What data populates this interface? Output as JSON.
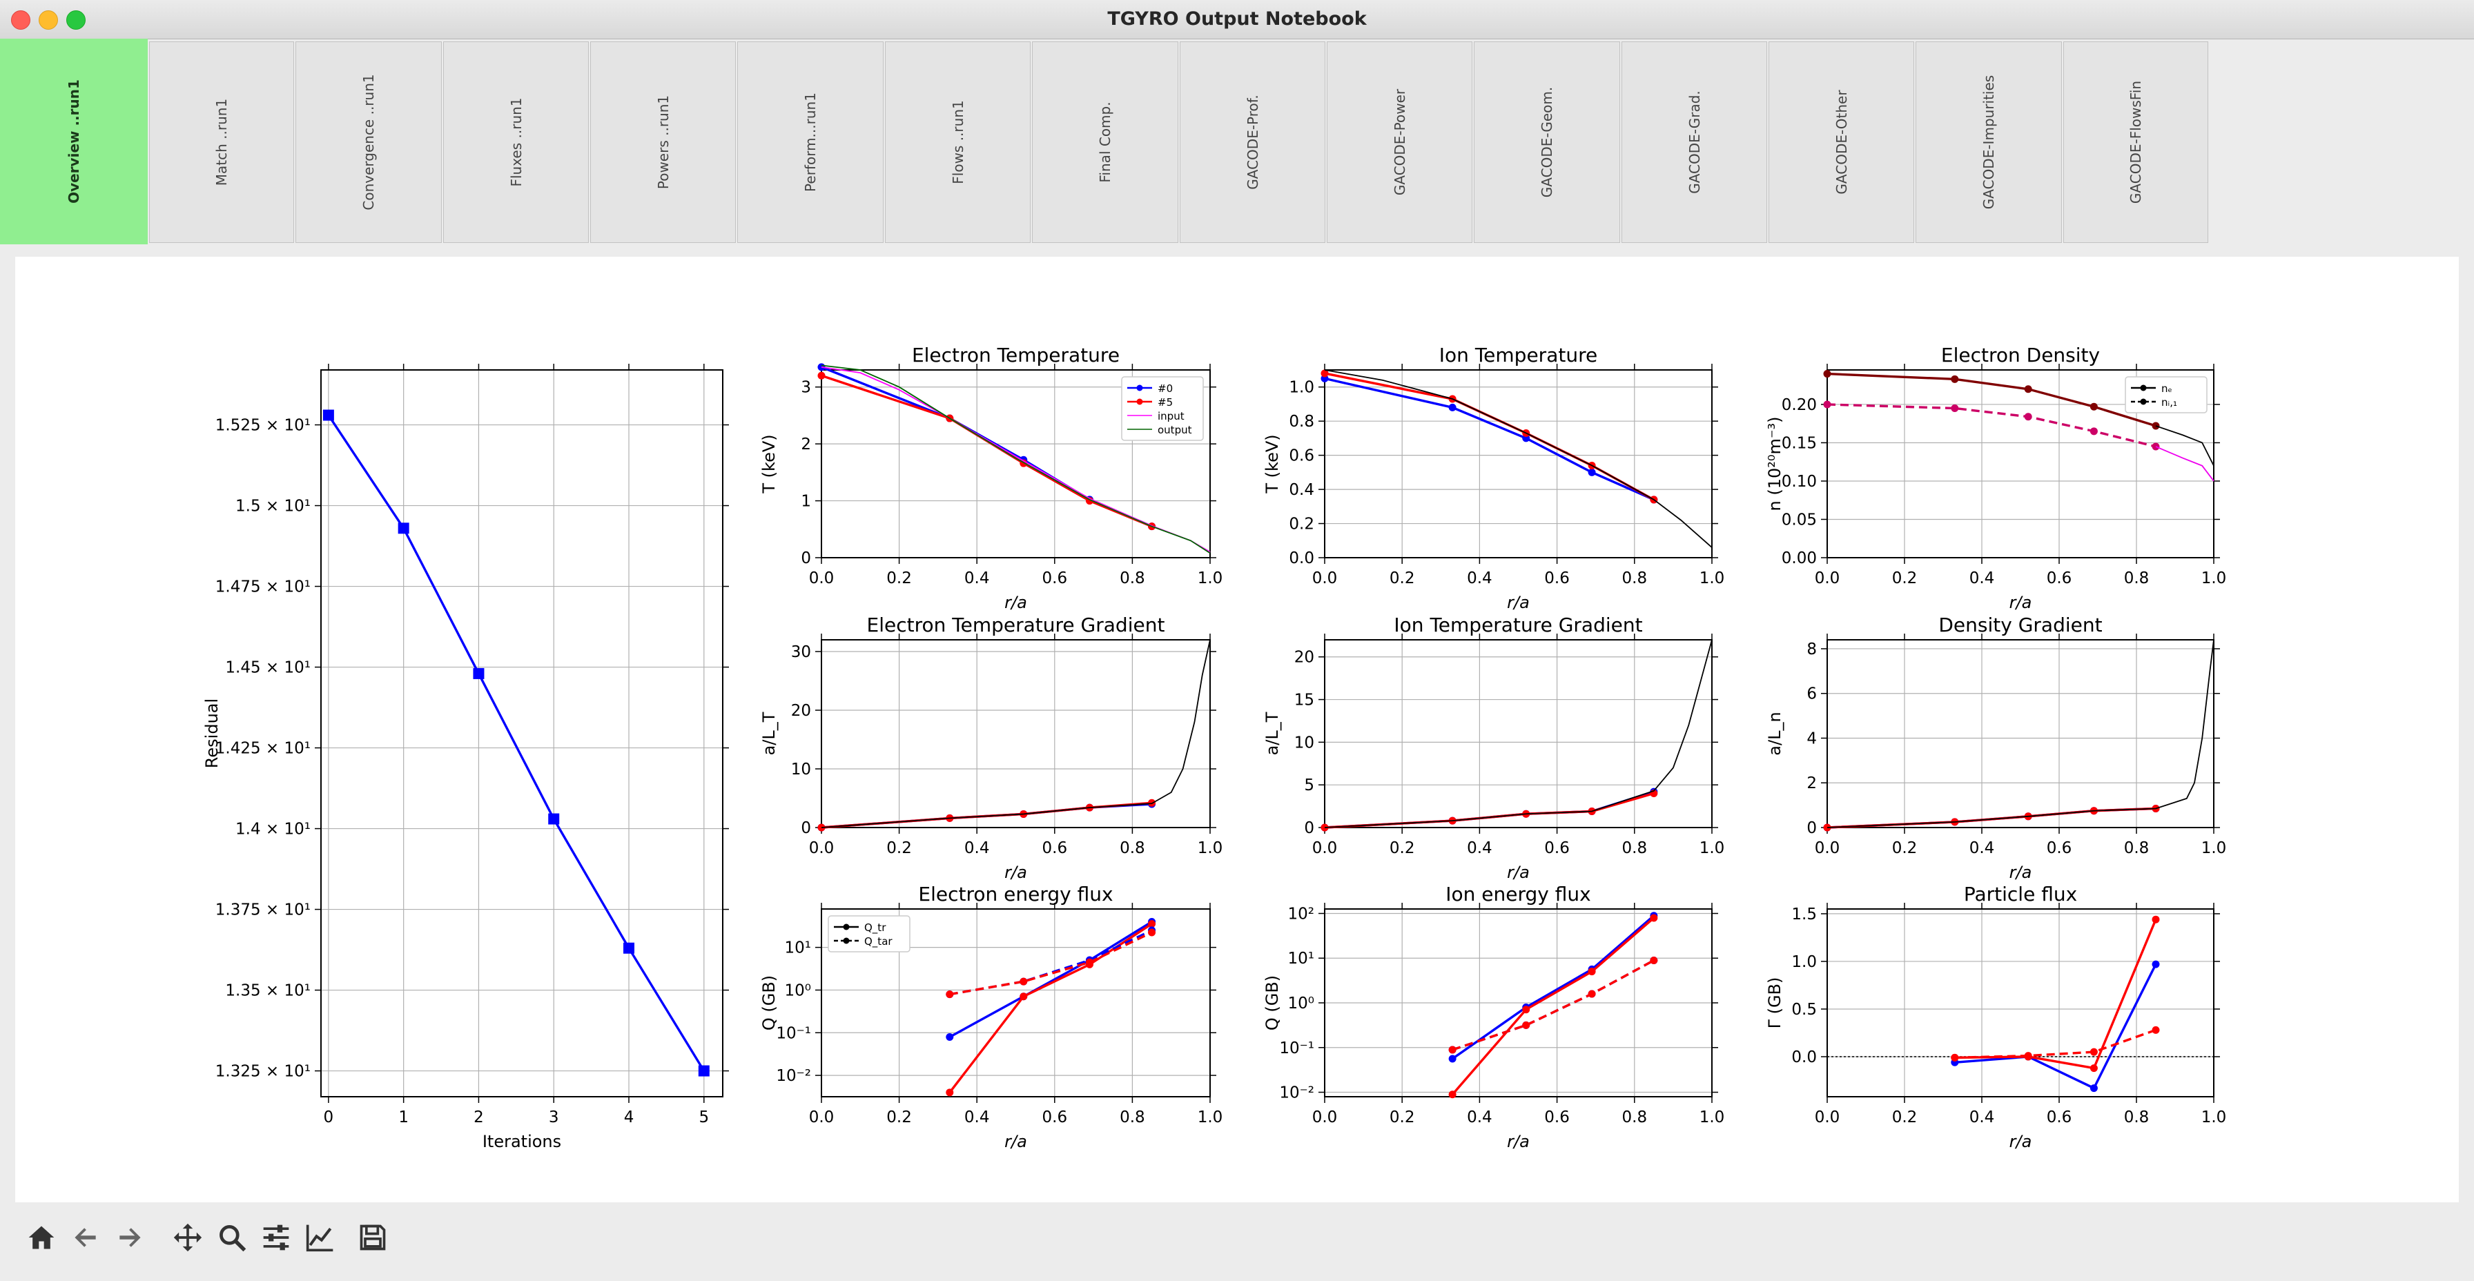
{
  "window": {
    "title": "TGYRO Output Notebook"
  },
  "tabs": [
    {
      "label": "Overview ..run1",
      "active": true
    },
    {
      "label": "Match ..run1"
    },
    {
      "label": "Convergence ..run1"
    },
    {
      "label": "Fluxes ..run1"
    },
    {
      "label": "Powers ..run1"
    },
    {
      "label": "Perform...run1"
    },
    {
      "label": "Flows ..run1"
    },
    {
      "label": "Final Comp."
    },
    {
      "label": "GACODE-Prof."
    },
    {
      "label": "GACODE-Power"
    },
    {
      "label": "GACODE-Geom."
    },
    {
      "label": "GACODE-Grad."
    },
    {
      "label": "GACODE-Other"
    },
    {
      "label": "GACODE-Impurities"
    },
    {
      "label": "GACODE-FlowsFin"
    }
  ],
  "toolbar": [
    {
      "name": "home-icon"
    },
    {
      "name": "back-icon"
    },
    {
      "name": "forward-icon"
    },
    {
      "name": "pan-icon"
    },
    {
      "name": "zoom-icon"
    },
    {
      "name": "configure-subplots-icon"
    },
    {
      "name": "edit-axis-icon"
    },
    {
      "name": "save-icon"
    }
  ],
  "colors": {
    "blue": "#0000ff",
    "red": "#ff0000",
    "dark": "#800000",
    "magenta": "#ee00ee",
    "tab_active": "#90ee90"
  },
  "chart_data": [
    {
      "type": "line",
      "xlabel": "Iterations",
      "ylabel": "Residual",
      "x": [
        0,
        1,
        2,
        3,
        4,
        5
      ],
      "ylim": [
        13.17,
        15.42
      ],
      "yticks": [
        13.25,
        13.5,
        13.75,
        14.0,
        14.25,
        14.5,
        14.75,
        15.0,
        15.25
      ],
      "ytick_labels": [
        "1.325 × 10¹",
        "1.35 × 10¹",
        "1.375 × 10¹",
        "1.4 × 10¹",
        "1.425 × 10¹",
        "1.45 × 10¹",
        "1.475 × 10¹",
        "1.5 × 10¹",
        "1.525 × 10¹"
      ],
      "xticks": [
        0,
        1,
        2,
        3,
        4,
        5
      ],
      "series": [
        {
          "color": "#0000ff",
          "marker": "square",
          "values": [
            15.28,
            14.93,
            14.48,
            14.03,
            13.63,
            13.25
          ]
        }
      ]
    },
    {
      "type": "line",
      "title": "Electron Temperature",
      "xlabel": "r/a",
      "ylabel": "T (keV)",
      "xlim": [
        0,
        1
      ],
      "ylim": [
        0,
        3.3
      ],
      "yticks": [
        0,
        1,
        2,
        3
      ],
      "legend": {
        "position": "top-right",
        "entries": [
          "#0",
          "#5",
          "input",
          "output"
        ]
      },
      "series": [
        {
          "name": "#0",
          "color": "#0000ff",
          "marker": "dot",
          "x": [
            0,
            0.33,
            0.52,
            0.69,
            0.85
          ],
          "y": [
            3.35,
            2.45,
            1.72,
            1.02,
            0.55
          ]
        },
        {
          "name": "#5",
          "color": "#ff0000",
          "marker": "dot",
          "x": [
            0,
            0.33,
            0.52,
            0.69,
            0.85
          ],
          "y": [
            3.2,
            2.45,
            1.66,
            1.0,
            0.55
          ]
        },
        {
          "name": "input",
          "color": "#ff00ff",
          "thin": true,
          "x": [
            0,
            0.1,
            0.2,
            0.33,
            0.5,
            0.69,
            0.85,
            0.95,
            1.0
          ],
          "y": [
            3.35,
            3.25,
            2.95,
            2.45,
            1.78,
            1.04,
            0.56,
            0.3,
            0.1
          ]
        },
        {
          "name": "output",
          "color": "#006400",
          "thin": true,
          "x": [
            0,
            0.1,
            0.2,
            0.33,
            0.5,
            0.69,
            0.85,
            0.95,
            1.0
          ],
          "y": [
            3.38,
            3.3,
            3.0,
            2.45,
            1.75,
            1.02,
            0.55,
            0.3,
            0.08
          ]
        }
      ]
    },
    {
      "type": "line",
      "title": "Ion Temperature",
      "xlabel": "r/a",
      "ylabel": "T (keV)",
      "xlim": [
        0,
        1
      ],
      "ylim": [
        0,
        1.1
      ],
      "yticks": [
        0,
        0.2,
        0.4,
        0.6,
        0.8,
        1.0
      ],
      "series": [
        {
          "name": "#0",
          "color": "#0000ff",
          "marker": "dot",
          "x": [
            0,
            0.33,
            0.52,
            0.69,
            0.85
          ],
          "y": [
            1.05,
            0.88,
            0.7,
            0.5,
            0.34
          ]
        },
        {
          "name": "#5",
          "color": "#ff0000",
          "marker": "dot",
          "x": [
            0,
            0.33,
            0.52,
            0.69,
            0.85
          ],
          "y": [
            1.08,
            0.93,
            0.73,
            0.54,
            0.34
          ]
        },
        {
          "name": "output",
          "color": "#000000",
          "thin": true,
          "x": [
            0,
            0.15,
            0.33,
            0.52,
            0.69,
            0.85,
            0.92,
            1.0
          ],
          "y": [
            1.1,
            1.04,
            0.93,
            0.73,
            0.54,
            0.34,
            0.22,
            0.06
          ]
        }
      ]
    },
    {
      "type": "line",
      "title": "Electron Density",
      "xlabel": "r/a",
      "ylabel": "n (10²⁰m⁻³)",
      "xlim": [
        0,
        1
      ],
      "ylim": [
        0,
        0.245
      ],
      "yticks": [
        0,
        0.05,
        0.1,
        0.15,
        0.2
      ],
      "legend": {
        "position": "top-right",
        "entries": [
          "nₑ",
          "nᵢ,₁"
        ]
      },
      "series": [
        {
          "name": "nₑ",
          "color": "#800000",
          "marker": "dot",
          "x": [
            0,
            0.33,
            0.52,
            0.69,
            0.85
          ],
          "y": [
            0.24,
            0.233,
            0.22,
            0.197,
            0.172
          ]
        },
        {
          "name": "nᵢ,₁",
          "color": "#cc0066",
          "dashed": true,
          "marker": "dot",
          "x": [
            0,
            0.33,
            0.52,
            0.69,
            0.85
          ],
          "y": [
            0.2,
            0.195,
            0.184,
            0.165,
            0.145
          ]
        },
        {
          "color": "#000000",
          "thin": true,
          "x": [
            0.85,
            0.92,
            0.97,
            1.0
          ],
          "y": [
            0.172,
            0.16,
            0.15,
            0.12
          ]
        },
        {
          "color": "#ee00ee",
          "thin": true,
          "x": [
            0.85,
            0.92,
            0.97,
            1.0
          ],
          "y": [
            0.145,
            0.13,
            0.12,
            0.1
          ]
        }
      ]
    },
    {
      "type": "line",
      "title": "Electron Temperature Gradient",
      "xlabel": "r/a",
      "ylabel": "a/L_T",
      "xlim": [
        0,
        1
      ],
      "ylim": [
        0,
        32
      ],
      "yticks": [
        0,
        10,
        20,
        30
      ],
      "series": [
        {
          "color": "#0000ff",
          "marker": "dot",
          "x": [
            0,
            0.33,
            0.52,
            0.69,
            0.85
          ],
          "y": [
            0,
            1.6,
            2.3,
            3.4,
            4.0
          ]
        },
        {
          "color": "#ff0000",
          "marker": "dot",
          "x": [
            0,
            0.33,
            0.52,
            0.69,
            0.85
          ],
          "y": [
            0,
            1.6,
            2.3,
            3.4,
            4.2
          ]
        },
        {
          "color": "#000000",
          "thin": true,
          "x": [
            0,
            0.33,
            0.52,
            0.69,
            0.85,
            0.9,
            0.93,
            0.96,
            0.98,
            1.0
          ],
          "y": [
            0,
            1.6,
            2.3,
            3.4,
            4.1,
            6,
            10,
            18,
            26,
            32
          ]
        }
      ]
    },
    {
      "type": "line",
      "title": "Ion Temperature Gradient",
      "xlabel": "r/a",
      "ylabel": "a/L_T",
      "xlim": [
        0,
        1
      ],
      "ylim": [
        0,
        22
      ],
      "yticks": [
        0,
        5,
        10,
        15,
        20
      ],
      "series": [
        {
          "color": "#0000ff",
          "marker": "dot",
          "x": [
            0,
            0.33,
            0.52,
            0.69,
            0.85
          ],
          "y": [
            0,
            0.8,
            1.6,
            1.9,
            4.2
          ]
        },
        {
          "color": "#ff0000",
          "marker": "dot",
          "x": [
            0,
            0.33,
            0.52,
            0.69,
            0.85
          ],
          "y": [
            0,
            0.8,
            1.6,
            1.9,
            4.0
          ]
        },
        {
          "color": "#000000",
          "thin": true,
          "x": [
            0,
            0.33,
            0.52,
            0.69,
            0.85,
            0.9,
            0.94,
            0.97,
            1.0
          ],
          "y": [
            0,
            0.8,
            1.6,
            1.9,
            4.3,
            7,
            12,
            17,
            22
          ]
        }
      ]
    },
    {
      "type": "line",
      "title": "Density Gradient",
      "xlabel": "r/a",
      "ylabel": "a/L_n",
      "xlim": [
        0,
        1
      ],
      "ylim": [
        0,
        8.4
      ],
      "yticks": [
        0,
        2,
        4,
        6,
        8
      ],
      "series": [
        {
          "color": "#0000ff",
          "marker": "dot",
          "x": [
            0,
            0.33,
            0.52,
            0.69,
            0.85
          ],
          "y": [
            0,
            0.25,
            0.5,
            0.75,
            0.85
          ]
        },
        {
          "color": "#ff0000",
          "marker": "dot",
          "x": [
            0,
            0.33,
            0.52,
            0.69,
            0.85
          ],
          "y": [
            0,
            0.25,
            0.5,
            0.75,
            0.85
          ]
        },
        {
          "color": "#000000",
          "thin": true,
          "x": [
            0,
            0.33,
            0.52,
            0.69,
            0.85,
            0.93,
            0.95,
            0.97,
            0.99,
            1.0
          ],
          "y": [
            0,
            0.25,
            0.5,
            0.75,
            0.85,
            1.3,
            2,
            4,
            7,
            8.4
          ]
        }
      ]
    },
    {
      "type": "line",
      "title": "Electron energy flux",
      "xlabel": "r/a",
      "ylabel": "Q (GB)",
      "xlim": [
        0,
        1
      ],
      "yscale": "log",
      "ylim": [
        -2.5,
        1.9
      ],
      "yticks": [
        -2,
        -1,
        0,
        1
      ],
      "ytick_labels": [
        "10⁻²",
        "10⁻¹",
        "10⁰",
        "10¹"
      ],
      "legend": {
        "position": "top-left",
        "entries": [
          "Q_tr",
          "Q_tar"
        ]
      },
      "series": [
        {
          "color": "#0000ff",
          "marker": "dot",
          "x": [
            0.33,
            0.52,
            0.69,
            0.85
          ],
          "y": [
            -1.1,
            -0.15,
            0.7,
            1.6
          ]
        },
        {
          "color": "#ff0000",
          "marker": "dot",
          "x": [
            0.33,
            0.52,
            0.69,
            0.85
          ],
          "y": [
            -2.4,
            -0.15,
            0.6,
            1.55
          ]
        },
        {
          "color": "#0000ff",
          "dashed": true,
          "marker": "dot",
          "x": [
            0.33,
            0.52,
            0.69,
            0.85
          ],
          "y": [
            -0.1,
            0.2,
            0.7,
            1.4
          ]
        },
        {
          "color": "#ff0000",
          "dashed": true,
          "marker": "dot",
          "x": [
            0.33,
            0.52,
            0.69,
            0.85
          ],
          "y": [
            -0.1,
            0.2,
            0.65,
            1.35
          ]
        }
      ]
    },
    {
      "type": "line",
      "title": "Ion energy flux",
      "xlabel": "r/a",
      "ylabel": "Q (GB)",
      "xlim": [
        0,
        1
      ],
      "yscale": "log",
      "ylim": [
        -2.1,
        2.1
      ],
      "yticks": [
        -2,
        -1,
        0,
        1,
        2
      ],
      "ytick_labels": [
        "10⁻²",
        "10⁻¹",
        "10⁰",
        "10¹",
        "10²"
      ],
      "series": [
        {
          "color": "#0000ff",
          "marker": "dot",
          "x": [
            0.33,
            0.52,
            0.69,
            0.85
          ],
          "y": [
            -1.25,
            -0.1,
            0.75,
            1.95
          ]
        },
        {
          "color": "#ff0000",
          "marker": "dot",
          "x": [
            0.33,
            0.52,
            0.69,
            0.85
          ],
          "y": [
            -2.05,
            -0.15,
            0.7,
            1.9
          ]
        },
        {
          "color": "#0000ff",
          "dashed": true,
          "marker": "dot",
          "x": [
            0.33,
            0.52,
            0.69,
            0.85
          ],
          "y": [
            -1.05,
            -0.5,
            0.2,
            0.95
          ]
        },
        {
          "color": "#ff0000",
          "dashed": true,
          "marker": "dot",
          "x": [
            0.33,
            0.52,
            0.69,
            0.85
          ],
          "y": [
            -1.05,
            -0.5,
            0.2,
            0.95
          ]
        }
      ]
    },
    {
      "type": "line",
      "title": "Particle flux",
      "xlabel": "r/a",
      "ylabel": "Γ (GB)",
      "xlim": [
        0,
        1
      ],
      "ylim": [
        -0.42,
        1.55
      ],
      "yticks": [
        0,
        0.5,
        1.0,
        1.5
      ],
      "zero_line": true,
      "series": [
        {
          "color": "#0000ff",
          "marker": "dot",
          "x": [
            0.33,
            0.52,
            0.69,
            0.85
          ],
          "y": [
            -0.06,
            0.0,
            -0.33,
            0.97
          ]
        },
        {
          "color": "#ff0000",
          "marker": "dot",
          "x": [
            0.33,
            0.52,
            0.69,
            0.85
          ],
          "y": [
            -0.01,
            0.0,
            -0.12,
            1.44
          ]
        },
        {
          "color": "#ff0000",
          "dashed": true,
          "marker": "dot",
          "x": [
            0.33,
            0.52,
            0.69,
            0.85
          ],
          "y": [
            -0.01,
            0.01,
            0.05,
            0.28
          ]
        }
      ]
    }
  ]
}
